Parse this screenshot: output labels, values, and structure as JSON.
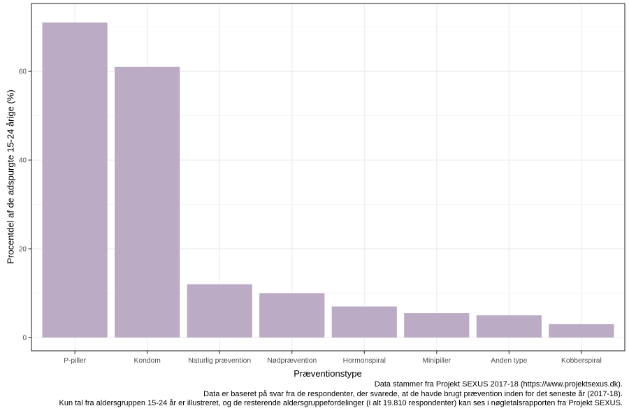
{
  "chart_data": {
    "type": "bar",
    "title": "",
    "xlabel": "Præventionstype",
    "ylabel": "Procentdel af de adspurgte 15-24 årige (%)",
    "categories": [
      "P-piller",
      "Kondom",
      "Naturlig prævention",
      "Nødprævention",
      "Hormonspiral",
      "Minipiller",
      "Anden type",
      "Kobberspiral"
    ],
    "values": [
      71,
      61,
      12,
      10,
      7,
      5.5,
      5,
      3
    ],
    "ylim": [
      -3,
      75.3
    ],
    "y_major_ticks": [
      0,
      20,
      40,
      60
    ],
    "y_minor_ticks": [
      10,
      30,
      50,
      70
    ],
    "grid": "horizontal major+minor, vertical major at categories",
    "legend": "none",
    "colors": {
      "bar_fill": "#bcabc5",
      "panel_border": "#4d4d4d",
      "grid_major": "#ececec",
      "grid_minor": "#f2f2f2",
      "tick_mark": "#333333",
      "tick_label": "#4d4d4d",
      "axis_title": "#000000",
      "caption_text": "#000000",
      "background": "#ffffff"
    },
    "caption_lines": [
      "Data stammer fra Projekt SEXUS 2017-18 (https://www.projektsexus.dk).",
      "Data er baseret på svar fra de respondenter, der svarede, at de havde brugt prævention inden for det seneste år (2017-18).",
      "Kun tal fra aldersgruppen 15-24 år er illustreret, og de resterende aldersgruppefordelinger (i alt 19.810 respondenter) kan ses i nøgletalsrapporten fra Projekt SEXUS."
    ]
  }
}
